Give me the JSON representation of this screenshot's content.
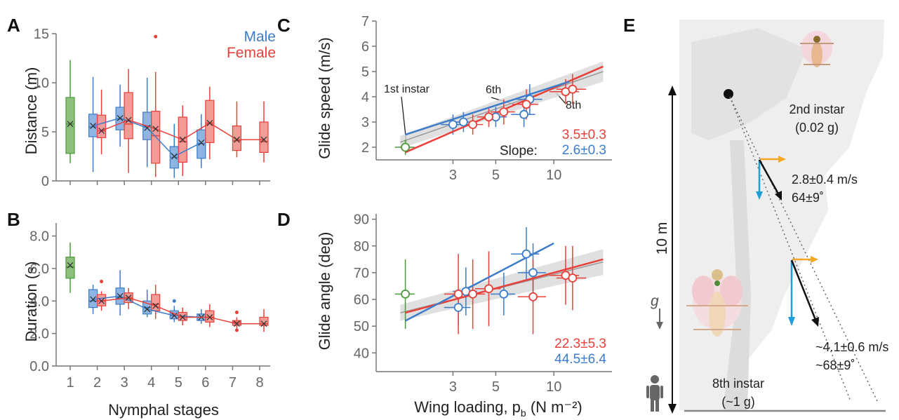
{
  "panels": {
    "A": {
      "letter": "A",
      "ylabel": "Distance (m)"
    },
    "B": {
      "letter": "B",
      "ylabel": "Duration (s)",
      "xlabel": "Nymphal stages"
    },
    "C": {
      "letter": "C",
      "ylabel": "Glide speed (m/s)",
      "annotations": {
        "first": "1st instar",
        "sixth": "6th",
        "eighth": "8th"
      },
      "slope_label": "Slope:",
      "slope_female": "3.5±0.3",
      "slope_male": "2.6±0.3"
    },
    "D": {
      "letter": "D",
      "ylabel": "Glide angle (deg)",
      "xlabel_main": "Wing loading, p",
      "xlabel_sub": "b",
      "xlabel_units": " (N m⁻²)",
      "slope_female": "22.3±5.3",
      "slope_male": "44.5±6.4"
    },
    "E": {
      "letter": "E",
      "height_label": "10 m",
      "gravity_label": "g",
      "second_instar": "2nd instar",
      "second_mass": "(0.02 g)",
      "second_speed": "2.8±0.4 m/s",
      "second_angle": "64±9˚",
      "eighth_instar": "8th instar",
      "eighth_mass": "(~1 g)",
      "eighth_speed": "~4.1±0.6 m/s",
      "eighth_angle": "~68±9˚"
    }
  },
  "legend": {
    "male": "Male",
    "female": "Female"
  },
  "colors": {
    "male": "#3d7cc9",
    "female": "#e8403a",
    "first": "#4a9a3a",
    "male_fill": "#8eb4e3",
    "female_fill": "#f29b97",
    "first_fill": "#8cc07c",
    "velocity_horizontal": "#f5a623",
    "velocity_vertical": "#1e9fd8"
  },
  "chart_data": [
    {
      "panel": "A",
      "type": "box",
      "ylabel": "Distance (m)",
      "ylim": [
        0,
        15
      ],
      "yticks": [
        0,
        5,
        10,
        15
      ],
      "categories": [
        "1",
        "2",
        "3",
        "4",
        "5",
        "6",
        "7",
        "8"
      ],
      "series": [
        {
          "name": "1st instar",
          "boxes": [
            {
              "x": 1,
              "min": 1.8,
              "q1": 2.8,
              "median": 5.8,
              "q3": 8.5,
              "max": 12.3
            }
          ]
        },
        {
          "name": "Male",
          "boxes": [
            {
              "x": 2,
              "min": 0.9,
              "q1": 4.5,
              "median": 5.5,
              "q3": 6.8,
              "max": 10.6
            },
            {
              "x": 3,
              "min": 3.5,
              "q1": 5.2,
              "median": 6.3,
              "q3": 7.5,
              "max": 9.8
            },
            {
              "x": 4,
              "min": 1.4,
              "q1": 4.2,
              "median": 5.6,
              "q3": 7.0,
              "max": 10.5
            },
            {
              "x": 5,
              "min": 0.3,
              "q1": 1.3,
              "median": 2.4,
              "q3": 3.5,
              "max": 5.8
            },
            {
              "x": 6,
              "min": 1.3,
              "q1": 2.3,
              "median": 3.8,
              "q3": 5.2,
              "max": 6.8
            }
          ]
        },
        {
          "name": "Female",
          "boxes": [
            {
              "x": 2,
              "min": 2.7,
              "q1": 4.4,
              "median": 5.1,
              "q3": 6.7,
              "max": 9.3
            },
            {
              "x": 3,
              "min": 0.8,
              "q1": 4.3,
              "median": 5.8,
              "q3": 9.0,
              "max": 11.4
            },
            {
              "x": 4,
              "min": 0.4,
              "q1": 1.8,
              "median": 4.6,
              "q3": 7.1,
              "max": 11.1,
              "outliers": [
                14.7
              ]
            },
            {
              "x": 5,
              "min": 0.5,
              "q1": 1.9,
              "median": 4.0,
              "q3": 6.5,
              "max": 7.7
            },
            {
              "x": 6,
              "min": 2.2,
              "q1": 3.9,
              "median": 5.9,
              "q3": 8.2,
              "max": 9.6
            },
            {
              "x": 7,
              "min": 2.4,
              "q1": 3.1,
              "median": 4.1,
              "q3": 5.6,
              "max": 8.1
            },
            {
              "x": 8,
              "min": 1.9,
              "q1": 2.9,
              "median": 4.0,
              "q3": 6.0,
              "max": 8.1
            }
          ]
        }
      ],
      "means": {
        "1st instar": [
          {
            "x": 1,
            "y": 5.8
          }
        ],
        "Male": [
          [
            2,
            5.6
          ],
          [
            3,
            6.4
          ],
          [
            4,
            5.4
          ],
          [
            5,
            2.5
          ],
          [
            6,
            3.9
          ]
        ],
        "Female": [
          [
            2,
            5.1
          ],
          [
            3,
            6.2
          ],
          [
            4,
            5.3
          ],
          [
            5,
            4.2
          ],
          [
            6,
            5.9
          ],
          [
            7,
            4.2
          ],
          [
            8,
            4.2
          ]
        ]
      }
    },
    {
      "panel": "B",
      "type": "box",
      "xlabel": "Nymphal stages",
      "ylabel": "Duration (s)",
      "ylim": [
        0,
        8.8
      ],
      "yticks": [
        0.0,
        2.0,
        4.0,
        6.0,
        8.0
      ],
      "categories": [
        "1",
        "2",
        "3",
        "4",
        "5",
        "6",
        "7",
        "8"
      ],
      "series": [
        {
          "name": "1st instar",
          "boxes": [
            {
              "x": 1,
              "min": 4.5,
              "q1": 5.4,
              "median": 6.1,
              "q3": 6.7,
              "max": 7.6
            }
          ]
        },
        {
          "name": "Male",
          "boxes": [
            {
              "x": 2,
              "min": 3.2,
              "q1": 3.6,
              "median": 4.0,
              "q3": 4.7,
              "max": 5.0
            },
            {
              "x": 3,
              "min": 3.1,
              "q1": 3.8,
              "median": 4.2,
              "q3": 4.8,
              "max": 5.9
            },
            {
              "x": 4,
              "min": 3.0,
              "q1": 3.2,
              "median": 3.6,
              "q3": 4.0,
              "max": 4.7
            },
            {
              "x": 5,
              "min": 2.7,
              "q1": 2.9,
              "median": 3.1,
              "q3": 3.4,
              "max": 3.7,
              "outliers": [
                4.0
              ]
            },
            {
              "x": 6,
              "min": 2.6,
              "q1": 2.8,
              "median": 3.0,
              "q3": 3.2,
              "max": 3.5
            }
          ]
        },
        {
          "name": "Female",
          "boxes": [
            {
              "x": 2,
              "min": 3.4,
              "q1": 3.7,
              "median": 4.0,
              "q3": 4.4,
              "max": 4.6,
              "outliers": [
                5.2
              ]
            },
            {
              "x": 3,
              "min": 3.5,
              "q1": 3.9,
              "median": 4.2,
              "q3": 4.5,
              "max": 4.8
            },
            {
              "x": 4,
              "min": 2.9,
              "q1": 3.4,
              "median": 3.8,
              "q3": 4.4,
              "max": 5.0
            },
            {
              "x": 5,
              "min": 2.5,
              "q1": 2.8,
              "median": 3.0,
              "q3": 3.3,
              "max": 3.6
            },
            {
              "x": 6,
              "min": 2.4,
              "q1": 2.7,
              "median": 3.0,
              "q3": 3.4,
              "max": 3.8
            },
            {
              "x": 7,
              "min": 2.3,
              "q1": 2.5,
              "median": 2.7,
              "q3": 2.8,
              "max": 3.0,
              "outliers": [
                2.2,
                3.3
              ]
            },
            {
              "x": 8,
              "min": 2.1,
              "q1": 2.5,
              "median": 2.6,
              "q3": 3.0,
              "max": 3.5
            }
          ]
        }
      ],
      "means": {
        "1st instar": [
          {
            "x": 1,
            "y": 6.2
          }
        ],
        "Male": [
          [
            2,
            4.1
          ],
          [
            3,
            4.3
          ],
          [
            4,
            3.5
          ],
          [
            5,
            3.1
          ],
          [
            6,
            3.0
          ]
        ],
        "Female": [
          [
            2,
            4.0
          ],
          [
            3,
            4.2
          ],
          [
            4,
            3.7
          ],
          [
            5,
            3.0
          ],
          [
            6,
            3.0
          ],
          [
            7,
            2.6
          ],
          [
            8,
            2.6
          ]
        ]
      }
    },
    {
      "panel": "C",
      "type": "scatter",
      "xscale": "log",
      "xlim": [
        1.2,
        20
      ],
      "xticks": [
        3,
        5,
        10
      ],
      "ylabel": "Glide speed (m/s)",
      "ylim": [
        1.5,
        7
      ],
      "yticks": [
        2,
        3,
        4,
        5,
        6,
        7
      ],
      "means": {
        "1st instar": [
          {
            "x": 1.7,
            "y": 2.0,
            "xerr": 0.2,
            "yerr": 0.3
          }
        ],
        "Male": [
          {
            "x": 3.0,
            "y": 2.9,
            "xerr": 0.4,
            "yerr": 0.4
          },
          {
            "x": 3.4,
            "y": 3.0,
            "xerr": 0.4,
            "yerr": 0.4
          },
          {
            "x": 5.0,
            "y": 3.2,
            "xerr": 0.7,
            "yerr": 0.4
          },
          {
            "x": 7.0,
            "y": 3.3,
            "xerr": 1.0,
            "yerr": 0.5
          },
          {
            "x": 7.5,
            "y": 3.9,
            "xerr": 1.2,
            "yerr": 0.6
          }
        ],
        "Female": [
          {
            "x": 3.8,
            "y": 2.9,
            "xerr": 0.5,
            "yerr": 0.4
          },
          {
            "x": 4.6,
            "y": 3.2,
            "xerr": 0.6,
            "yerr": 0.4
          },
          {
            "x": 5.5,
            "y": 3.4,
            "xerr": 0.8,
            "yerr": 0.5
          },
          {
            "x": 7.2,
            "y": 3.7,
            "xerr": 1.1,
            "yerr": 0.6
          },
          {
            "x": 11.5,
            "y": 4.2,
            "xerr": 2.0,
            "yerr": 0.5
          },
          {
            "x": 12.5,
            "y": 4.3,
            "xerr": 2.2,
            "yerr": 0.6
          }
        ]
      },
      "fits": {
        "Male": [
          [
            1.7,
            2.5
          ],
          [
            12,
            4.6
          ]
        ],
        "Female": [
          [
            1.7,
            1.8
          ],
          [
            18,
            5.2
          ]
        ],
        "Pooled": [
          [
            1.6,
            2.2
          ],
          [
            18,
            5.0
          ]
        ]
      },
      "slopes": {
        "Female": "3.5±0.3",
        "Male": "2.6±0.3"
      }
    },
    {
      "panel": "D",
      "type": "scatter",
      "xscale": "log",
      "xlim": [
        1.2,
        20
      ],
      "xticks": [
        3,
        5,
        10
      ],
      "xlabel": "Wing loading, p_b (N m⁻²)",
      "ylabel": "Glide angle (deg)",
      "ylim": [
        33,
        92
      ],
      "yticks": [
        40,
        50,
        60,
        70,
        80,
        90
      ],
      "means": {
        "1st instar": [
          {
            "x": 1.7,
            "y": 62,
            "xerr": 0.2,
            "yerr": 13
          }
        ],
        "Male": [
          {
            "x": 3.2,
            "y": 57,
            "xerr": 0.5,
            "yerr": 7
          },
          {
            "x": 3.5,
            "y": 63,
            "xerr": 0.5,
            "yerr": 9
          },
          {
            "x": 5.5,
            "y": 62,
            "xerr": 0.8,
            "yerr": 8
          },
          {
            "x": 7.2,
            "y": 77,
            "xerr": 1.2,
            "yerr": 10
          },
          {
            "x": 7.8,
            "y": 70,
            "xerr": 1.3,
            "yerr": 11
          }
        ],
        "Female": [
          {
            "x": 3.2,
            "y": 62,
            "xerr": 0.5,
            "yerr": 15
          },
          {
            "x": 3.8,
            "y": 62,
            "xerr": 0.6,
            "yerr": 13
          },
          {
            "x": 4.6,
            "y": 64,
            "xerr": 0.7,
            "yerr": 14
          },
          {
            "x": 7.8,
            "y": 61,
            "xerr": 1.3,
            "yerr": 14
          },
          {
            "x": 11.5,
            "y": 69,
            "xerr": 2.0,
            "yerr": 11
          },
          {
            "x": 12.5,
            "y": 68,
            "xerr": 2.2,
            "yerr": 12
          }
        ]
      },
      "fits": {
        "Male": [
          [
            1.7,
            52
          ],
          [
            10,
            81
          ]
        ],
        "Female": [
          [
            1.7,
            55
          ],
          [
            18,
            75
          ]
        ],
        "Pooled": [
          [
            1.6,
            55
          ],
          [
            18,
            74
          ]
        ]
      },
      "slopes": {
        "Female": "22.3±5.3",
        "Male": "44.5±6.4"
      }
    }
  ]
}
